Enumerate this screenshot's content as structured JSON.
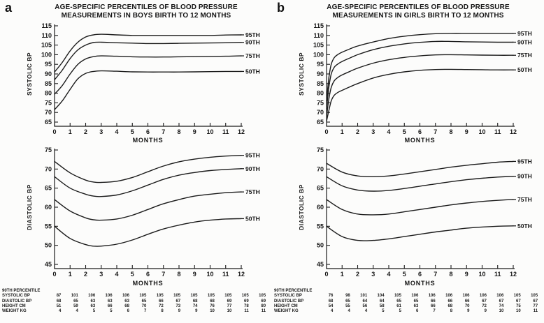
{
  "figure": {
    "panels": [
      {
        "letter": "a",
        "title_lines": [
          "AGE-SPECIFIC PERCENTILES OF BLOOD PRESSURE",
          "MEASUREMENTS IN BOYS BIRTH TO 12 MONTHS"
        ]
      },
      {
        "letter": "b",
        "title_lines": [
          "AGE-SPECIFIC PERCENTILES OF BLOOD PRESSURE",
          "MEASUREMENTS IN GIRLS BIRTH TO 12 MONTHS"
        ]
      }
    ]
  },
  "chart_data": [
    {
      "id": "boys-systolic",
      "type": "line",
      "slot": "top",
      "ylabel": "SYSTOLIC BP",
      "xlabel": "MONTHS",
      "xlim": [
        0,
        12
      ],
      "xticks": [
        0,
        1,
        2,
        3,
        4,
        5,
        6,
        7,
        8,
        9,
        10,
        11,
        12
      ],
      "ylim": [
        65,
        115
      ],
      "yticks": [
        65,
        70,
        75,
        80,
        85,
        90,
        95,
        100,
        105,
        110,
        115
      ],
      "grid": false,
      "legend_position": "right-of-curves",
      "series": [
        {
          "name": "95TH",
          "x": [
            0,
            0.5,
            1,
            1.5,
            2,
            2.5,
            3,
            4,
            5,
            6,
            7,
            8,
            9,
            10,
            11,
            12
          ],
          "y": [
            91,
            96,
            102,
            106.5,
            109.2,
            110.3,
            110.6,
            110.3,
            110,
            110,
            110,
            110,
            110,
            110,
            110.2,
            110.3
          ]
        },
        {
          "name": "90TH",
          "x": [
            0,
            0.5,
            1,
            1.5,
            2,
            2.5,
            3,
            4,
            5,
            6,
            7,
            8,
            9,
            10,
            11,
            12
          ],
          "y": [
            87,
            92,
            98,
            102.5,
            105,
            106.3,
            106.5,
            106.2,
            106,
            105.8,
            105.8,
            105.9,
            106,
            106.1,
            106.2,
            106.4
          ]
        },
        {
          "name": "75TH",
          "x": [
            0,
            0.5,
            1,
            1.5,
            2,
            2.5,
            3,
            4,
            5,
            6,
            7,
            8,
            9,
            10,
            11,
            12
          ],
          "y": [
            79.5,
            84,
            90,
            95,
            97.8,
            99,
            99.4,
            99.2,
            98.9,
            98.8,
            98.8,
            98.9,
            99,
            99.1,
            99.2,
            99.4
          ]
        },
        {
          "name": "50TH",
          "x": [
            0,
            0.5,
            1,
            1.5,
            2,
            2.5,
            3,
            4,
            5,
            6,
            7,
            8,
            9,
            10,
            11,
            12
          ],
          "y": [
            71.5,
            76,
            82,
            87.5,
            90.3,
            91.3,
            91.6,
            91.4,
            91.1,
            91,
            91,
            91,
            91.1,
            91.2,
            91.3,
            91.3
          ]
        }
      ]
    },
    {
      "id": "boys-diastolic",
      "type": "line",
      "slot": "bottom",
      "ylabel": "DIASTOLIC BP",
      "xlabel": "MONTHS",
      "xlim": [
        0,
        12
      ],
      "xticks": [
        0,
        1,
        2,
        3,
        4,
        5,
        6,
        7,
        8,
        9,
        10,
        11,
        12
      ],
      "ylim": [
        45,
        75
      ],
      "yticks": [
        45,
        50,
        55,
        60,
        65,
        70,
        75
      ],
      "grid": false,
      "legend_position": "right-of-curves",
      "series": [
        {
          "name": "95TH",
          "x": [
            0,
            1,
            2,
            2.5,
            3,
            4,
            5,
            6,
            7,
            8,
            9,
            10,
            11,
            12
          ],
          "y": [
            72,
            69,
            67.1,
            66.6,
            66.5,
            66.8,
            67.8,
            69.3,
            70.8,
            71.9,
            72.6,
            73.1,
            73.4,
            73.6
          ]
        },
        {
          "name": "90TH",
          "x": [
            0,
            1,
            2,
            2.5,
            3,
            4,
            5,
            6,
            7,
            8,
            9,
            10,
            11,
            12
          ],
          "y": [
            68,
            65,
            63.4,
            62.9,
            62.8,
            63.2,
            64.3,
            65.8,
            67.3,
            68.4,
            69.1,
            69.6,
            69.9,
            70.1
          ]
        },
        {
          "name": "75TH",
          "x": [
            0,
            1,
            2,
            2.5,
            3,
            4,
            5,
            6,
            7,
            8,
            9,
            10,
            11,
            12
          ],
          "y": [
            62,
            59,
            57.2,
            56.7,
            56.6,
            56.9,
            57.9,
            59.4,
            60.9,
            62,
            62.9,
            63.4,
            63.8,
            64
          ]
        },
        {
          "name": "50TH",
          "x": [
            0,
            1,
            2,
            2.5,
            3,
            4,
            5,
            6,
            7,
            8,
            9,
            10,
            11,
            12
          ],
          "y": [
            55,
            51.8,
            50.2,
            49.8,
            49.8,
            50.3,
            51.4,
            52.9,
            54.3,
            55.3,
            56.1,
            56.6,
            56.9,
            57
          ]
        }
      ]
    },
    {
      "id": "girls-systolic",
      "type": "line",
      "slot": "top",
      "ylabel": "SYSTOLIC BP",
      "xlabel": "MONTHS",
      "xlim": [
        0,
        12
      ],
      "xticks": [
        0,
        1,
        2,
        3,
        4,
        5,
        6,
        7,
        8,
        9,
        10,
        11,
        12
      ],
      "ylim": [
        65,
        115
      ],
      "yticks": [
        65,
        70,
        75,
        80,
        85,
        90,
        95,
        100,
        105,
        110,
        115
      ],
      "grid": false,
      "legend_position": "right-of-curves",
      "series": [
        {
          "name": "95TH",
          "x": [
            0,
            0.15,
            0.3,
            0.5,
            0.75,
            1,
            1.5,
            2,
            3,
            4,
            5,
            6,
            7,
            8,
            9,
            10,
            11,
            12
          ],
          "y": [
            76,
            88,
            95,
            98.5,
            100.2,
            101.3,
            103,
            104.5,
            106.6,
            108.4,
            109.6,
            110.4,
            110.9,
            111.1,
            111.1,
            111.1,
            111.1,
            111.1
          ]
        },
        {
          "name": "90TH",
          "x": [
            0,
            0.15,
            0.3,
            0.5,
            0.75,
            1,
            1.5,
            2,
            3,
            4,
            5,
            6,
            7,
            8,
            9,
            10,
            11,
            12
          ],
          "y": [
            72,
            83,
            90,
            93.5,
            95.3,
            96.5,
            98.3,
            100,
            102.6,
            104.4,
            105.6,
            106.4,
            106.9,
            106.9,
            106.7,
            106.6,
            106.5,
            106.5
          ]
        },
        {
          "name": "75TH",
          "x": [
            0,
            0.15,
            0.3,
            0.5,
            0.75,
            1,
            1.5,
            2,
            3,
            4,
            5,
            6,
            7,
            8,
            9,
            10,
            11,
            12
          ],
          "y": [
            68,
            77,
            83,
            86.5,
            88.3,
            89.5,
            91.3,
            93,
            95.6,
            97.4,
            98.6,
            99.4,
            99.9,
            100,
            99.9,
            99.8,
            99.7,
            99.7
          ]
        },
        {
          "name": "50TH",
          "x": [
            0,
            0.15,
            0.3,
            0.5,
            0.75,
            1,
            1.5,
            2,
            3,
            4,
            5,
            6,
            7,
            8,
            9,
            10,
            11,
            12
          ],
          "y": [
            65.5,
            71,
            76,
            79,
            80.5,
            81.5,
            83.3,
            85,
            87.9,
            89.8,
            91.1,
            91.9,
            92.3,
            92.4,
            92.3,
            92.2,
            92.1,
            92.1
          ]
        }
      ]
    },
    {
      "id": "girls-diastolic",
      "type": "line",
      "slot": "bottom",
      "ylabel": "DIASTOLIC BP",
      "xlabel": "MONTHS",
      "xlim": [
        0,
        12
      ],
      "xticks": [
        0,
        1,
        2,
        3,
        4,
        5,
        6,
        7,
        8,
        9,
        10,
        11,
        12
      ],
      "ylim": [
        45,
        75
      ],
      "yticks": [
        45,
        50,
        55,
        60,
        65,
        70,
        75
      ],
      "grid": false,
      "legend_position": "right-of-curves",
      "series": [
        {
          "name": "95TH",
          "x": [
            0,
            1,
            2,
            3,
            4,
            5,
            6,
            7,
            8,
            9,
            10,
            11,
            12
          ],
          "y": [
            71.5,
            69.2,
            68.2,
            68,
            68.2,
            68.7,
            69.3,
            69.9,
            70.5,
            71,
            71.4,
            71.8,
            72
          ]
        },
        {
          "name": "90TH",
          "x": [
            0,
            1,
            2,
            3,
            4,
            5,
            6,
            7,
            8,
            9,
            10,
            11,
            12
          ],
          "y": [
            68,
            65.6,
            64.5,
            64.2,
            64.4,
            64.9,
            65.5,
            66.1,
            66.7,
            67.2,
            67.6,
            67.9,
            68.1
          ]
        },
        {
          "name": "75TH",
          "x": [
            0,
            1,
            2,
            3,
            4,
            5,
            6,
            7,
            8,
            9,
            10,
            11,
            12
          ],
          "y": [
            62,
            59.4,
            58.2,
            58,
            58.2,
            58.8,
            59.4,
            60,
            60.6,
            61.1,
            61.5,
            61.8,
            62
          ]
        },
        {
          "name": "50TH",
          "x": [
            0,
            1,
            2,
            3,
            4,
            5,
            6,
            7,
            8,
            9,
            10,
            11,
            12
          ],
          "y": [
            55,
            52.3,
            51.3,
            51.3,
            51.7,
            52.3,
            52.9,
            53.5,
            54,
            54.5,
            54.8,
            55,
            55.1
          ]
        }
      ]
    }
  ],
  "tables": [
    {
      "header": "90TH PERCENTILE",
      "rows": [
        {
          "label": "SYSTOLIC BP",
          "values": [
            87,
            101,
            106,
            106,
            106,
            105,
            105,
            105,
            105,
            105,
            105,
            105,
            105
          ]
        },
        {
          "label": "DIASTOLIC BP",
          "values": [
            68,
            65,
            63,
            63,
            63,
            65,
            66,
            67,
            68,
            68,
            69,
            69,
            69
          ]
        },
        {
          "label": "HEIGHT CM",
          "values": [
            51,
            59,
            63,
            66,
            68,
            70,
            72,
            73,
            74,
            76,
            77,
            78,
            80
          ]
        },
        {
          "label": "WEIGHT KG",
          "values": [
            4,
            4,
            5,
            5,
            6,
            7,
            8,
            9,
            9,
            10,
            10,
            11,
            11
          ]
        }
      ]
    },
    {
      "header": "90TH PERCENTILE",
      "rows": [
        {
          "label": "SYSTOLIC BP",
          "values": [
            76,
            98,
            101,
            104,
            105,
            106,
            106,
            106,
            106,
            106,
            106,
            105,
            105
          ]
        },
        {
          "label": "DIASTOLIC BP",
          "values": [
            68,
            65,
            64,
            64,
            65,
            65,
            66,
            66,
            66,
            67,
            67,
            67,
            67
          ]
        },
        {
          "label": "HEIGHT CM",
          "values": [
            54,
            55,
            56,
            58,
            61,
            63,
            66,
            68,
            70,
            72,
            74,
            75,
            77
          ]
        },
        {
          "label": "WEIGHT KG",
          "values": [
            4,
            4,
            4,
            5,
            5,
            6,
            7,
            8,
            9,
            9,
            10,
            10,
            11
          ]
        }
      ]
    }
  ]
}
